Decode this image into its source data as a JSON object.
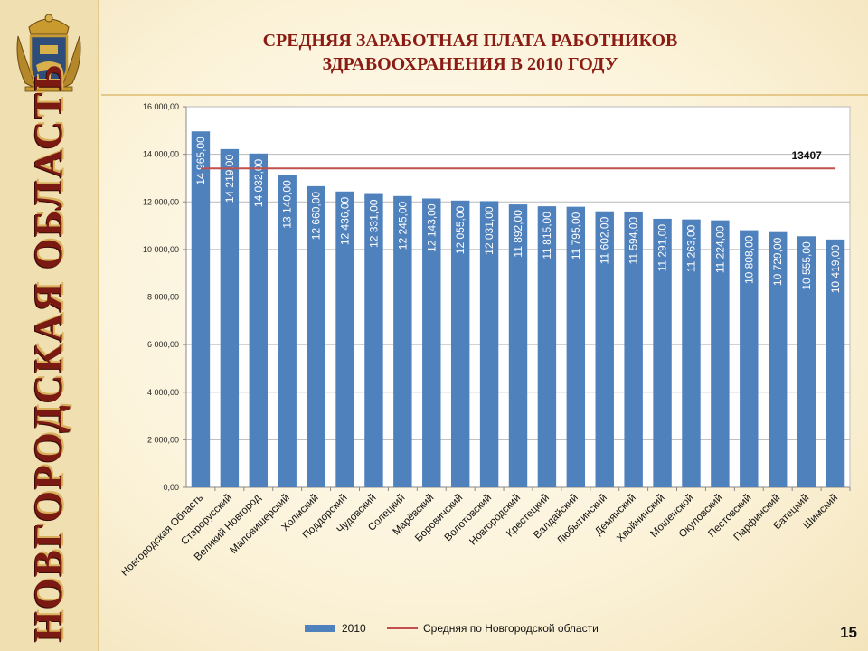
{
  "slide": {
    "title_line1": "СРЕДНЯЯ ЗАРАБОТНАЯ ПЛАТА РАБОТНИКОВ",
    "title_line2": "ЗДРАВООХРАНЕНИЯ В 2010 ГОДУ",
    "region": "НОВГОРОДСКАЯ ОБЛАСТЬ",
    "page_number": "15",
    "emblem_icon": "coat-of-arms-icon"
  },
  "chart_data": {
    "type": "bar",
    "categories": [
      "Новгородская Область",
      "Старорусский",
      "Великий Новгород",
      "Маловишерский",
      "Холмский",
      "Поддорский",
      "Чудовский",
      "Солецкий",
      "Марёвский",
      "Боровичский",
      "Волотовский",
      "Новгородский",
      "Крестецкий",
      "Валдайский",
      "Любытинский",
      "Демянский",
      "Хвойнинский",
      "Мошенской",
      "Окуловский",
      "Пестовский",
      "Парфинский",
      "Батецкий",
      "Шимский"
    ],
    "series": [
      {
        "name": "2010",
        "color": "#4f81bd",
        "values": [
          14965,
          14219,
          14032,
          13140,
          12660,
          12436,
          12331,
          12245,
          12143,
          12055,
          12031,
          11892,
          11815,
          11795,
          11602,
          11594,
          11291,
          11263,
          11224,
          10808,
          10729,
          10555,
          10419
        ],
        "labels": [
          "14 965,00",
          "14 219,00",
          "14 032,00",
          "13 140,00",
          "12 660,00",
          "12 436,00",
          "12 331,00",
          "12 245,00",
          "12 143,00",
          "12 055,00",
          "12 031,00",
          "11 892,00",
          "11 815,00",
          "11 795,00",
          "11 602,00",
          "11 594,00",
          "11 291,00",
          "11 263,00",
          "11 224,00",
          "10 808,00",
          "10 729,00",
          "10 555,00",
          "10 419,00"
        ]
      }
    ],
    "reference_line": {
      "name": "Средняя по Новгородской области",
      "value": 13407,
      "label": "13407",
      "color": "#c0504d"
    },
    "ylim": [
      0,
      16000
    ],
    "yticks": [
      0,
      2000,
      4000,
      6000,
      8000,
      10000,
      12000,
      14000,
      16000
    ],
    "ytick_labels": [
      "0,00",
      "2 000,00",
      "4 000,00",
      "6 000,00",
      "8 000,00",
      "10 000,00",
      "12 000,00",
      "14 000,00",
      "16 000,00"
    ],
    "grid": true,
    "legend_position": "bottom",
    "title": "",
    "xlabel": "",
    "ylabel": ""
  }
}
